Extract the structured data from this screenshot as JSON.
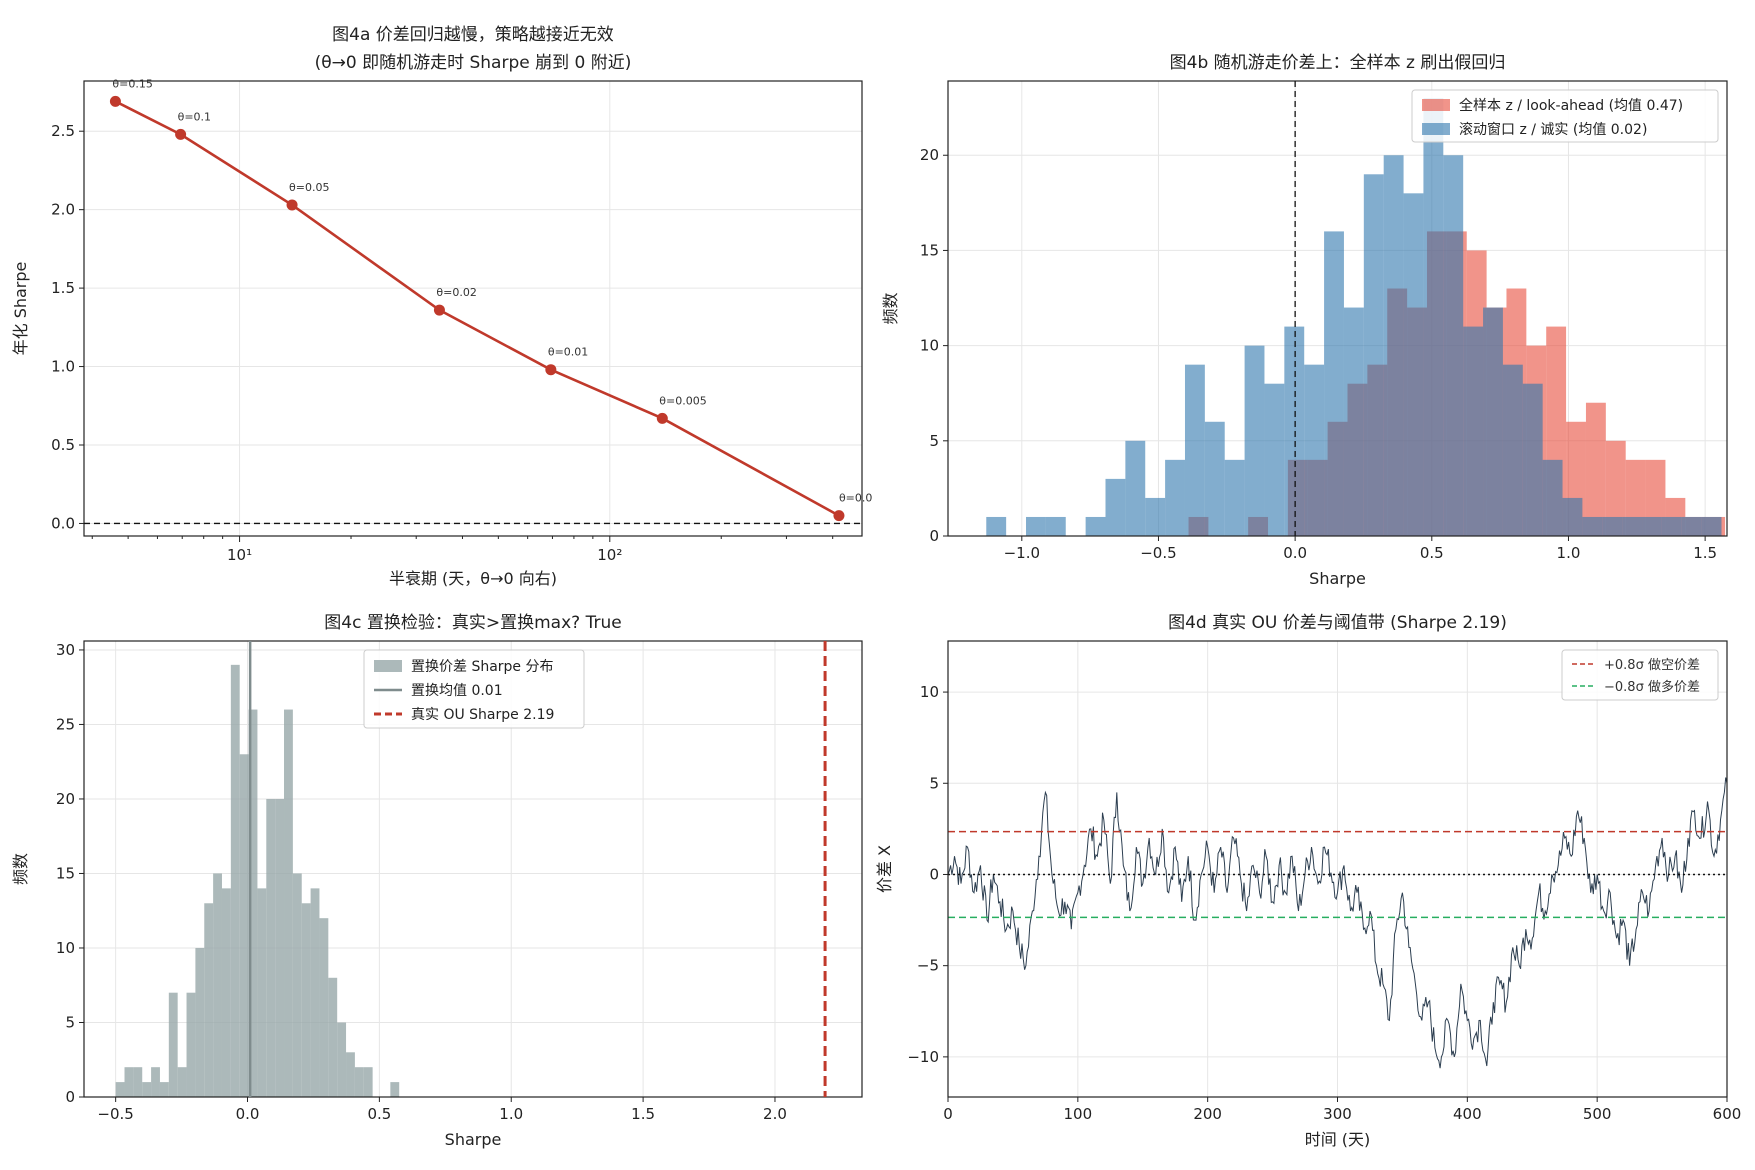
{
  "chart_data": [
    {
      "id": "a",
      "type": "line",
      "title": "图4a  价差回归越慢，策略越接近无效",
      "subtitle": "(θ→0 即随机游走时 Sharpe 崩到 0 附近)",
      "xlabel": "半衰期 (天，θ→0 向右)",
      "ylabel": "年化 Sharpe",
      "xscale": "log",
      "xlim": [
        3.8,
        480
      ],
      "ylim": [
        -0.08,
        2.82
      ],
      "x_ticks": [
        {
          "value": 10,
          "label": "10¹"
        },
        {
          "value": 100,
          "label": "10²"
        }
      ],
      "y_ticks": [
        0.0,
        0.5,
        1.0,
        1.5,
        2.0,
        2.5
      ],
      "y_tick_labels": [
        "0.0",
        "0.5",
        "1.0",
        "1.5",
        "2.0",
        "2.5"
      ],
      "x": [
        4.62,
        6.93,
        13.86,
        34.66,
        69.31,
        138.63,
        415.9
      ],
      "y": [
        2.69,
        2.48,
        2.03,
        1.36,
        0.98,
        0.67,
        0.05
      ],
      "point_labels": [
        "θ=0.15",
        "θ=0.1",
        "θ=0.05",
        "θ=0.02",
        "θ=0.01",
        "θ=0.005",
        "θ=0.0"
      ],
      "hline": 0,
      "grid": true,
      "colors": {
        "line": "#c0392b"
      }
    },
    {
      "id": "b",
      "type": "histogram",
      "title": "图4b  随机游走价差上：全样本 z 刷出假回归",
      "xlabel": "Sharpe",
      "ylabel": "频数",
      "xlim": [
        -1.27,
        1.58
      ],
      "ylim": [
        0,
        23.9
      ],
      "x_ticks": [
        -1.0,
        -0.5,
        0.0,
        0.5,
        1.0,
        1.5
      ],
      "x_tick_labels": [
        "−1.0",
        "−0.5",
        "0.0",
        "0.5",
        "1.0",
        "1.5"
      ],
      "y_ticks": [
        0,
        5,
        10,
        15,
        20
      ],
      "y_tick_labels": [
        "0",
        "5",
        "10",
        "15",
        "20"
      ],
      "vline": 0,
      "grid": true,
      "legend_position": "top-right",
      "series": [
        {
          "name": "全样本 z / look-ahead (均值 0.47)",
          "color": "#e74c3c",
          "bin_start": -0.39,
          "bin_width": 0.0727,
          "counts": [
            1,
            0,
            0,
            1,
            0,
            4,
            4,
            6,
            8,
            9,
            13,
            12,
            16,
            16,
            15,
            12,
            13,
            10,
            11,
            6,
            7,
            5,
            4,
            4,
            2,
            1,
            1,
            0,
            0,
            1,
            2,
            1
          ]
        },
        {
          "name": "滚动窗口 z / 诚实 (均值 0.02)",
          "color": "#2e77ae",
          "bin_start": -1.13,
          "bin_width": 0.0727,
          "counts": [
            1,
            0,
            1,
            1,
            0,
            1,
            3,
            5,
            2,
            4,
            9,
            6,
            4,
            10,
            8,
            11,
            9,
            16,
            12,
            19,
            20,
            18,
            23,
            20,
            11,
            12,
            9,
            8,
            4,
            2,
            1,
            1,
            1,
            1,
            1,
            1,
            1
          ]
        }
      ]
    },
    {
      "id": "c",
      "type": "histogram",
      "title": "图4c  置换检验：真实>置换max? True",
      "xlabel": "Sharpe",
      "ylabel": "频数",
      "xlim": [
        -0.62,
        2.33
      ],
      "ylim": [
        0,
        30.6
      ],
      "x_ticks": [
        -0.5,
        0.0,
        0.5,
        1.0,
        1.5,
        2.0
      ],
      "x_tick_labels": [
        "−0.5",
        "0.0",
        "0.5",
        "1.0",
        "1.5",
        "2.0"
      ],
      "y_ticks": [
        0,
        5,
        10,
        15,
        20,
        25,
        30
      ],
      "y_tick_labels": [
        "0",
        "5",
        "10",
        "15",
        "20",
        "25",
        "30"
      ],
      "grid": true,
      "legend_position": "top-center",
      "legend": [
        "置换价差 Sharpe 分布",
        "置换均值 0.01",
        "真实 OU Sharpe 2.19"
      ],
      "permutation": {
        "bin_start": -0.5,
        "bin_width": 0.0336,
        "counts": [
          1,
          2,
          2,
          1,
          2,
          1,
          7,
          2,
          7,
          10,
          13,
          15,
          14,
          29,
          23,
          26,
          14,
          20,
          20,
          26,
          15,
          13,
          14,
          12,
          8,
          5,
          3,
          2,
          2,
          0,
          0,
          1,
          0,
          0,
          0,
          0
        ]
      },
      "perm_mean": 0.01,
      "real_sharpe": 2.19,
      "colors": {
        "hist": "#95a5a6",
        "mean": "#7f8c8d",
        "real": "#c0392b"
      }
    },
    {
      "id": "d",
      "type": "line",
      "title": "图4d  真实 OU 价差与阈值带 (Sharpe 2.19)",
      "xlabel": "时间 (天)",
      "ylabel": "价差 X",
      "xlim": [
        0,
        600
      ],
      "ylim": [
        -12.2,
        12.8
      ],
      "x_ticks": [
        0,
        100,
        200,
        300,
        400,
        500,
        600
      ],
      "x_tick_labels": [
        "0",
        "100",
        "200",
        "300",
        "400",
        "500",
        "600"
      ],
      "y_ticks": [
        -10,
        -5,
        0,
        5,
        10
      ],
      "y_tick_labels": [
        "−10",
        "−5",
        "0",
        "5",
        "10"
      ],
      "grid": true,
      "legend_position": "top-right",
      "legend": [
        "+0.8σ 做空价差",
        "−0.8σ 做多价差"
      ],
      "thresholds": {
        "upper": 2.35,
        "lower": -2.35
      },
      "series_keypoints": [
        [
          0,
          0
        ],
        [
          5,
          1
        ],
        [
          10,
          -0.5
        ],
        [
          15,
          1.5
        ],
        [
          20,
          -1
        ],
        [
          25,
          0.5
        ],
        [
          30,
          -2.5
        ],
        [
          35,
          0
        ],
        [
          40,
          -1.5
        ],
        [
          45,
          -3
        ],
        [
          50,
          -2
        ],
        [
          55,
          -4
        ],
        [
          60,
          -5
        ],
        [
          65,
          -2
        ],
        [
          70,
          1
        ],
        [
          75,
          4.5
        ],
        [
          80,
          0
        ],
        [
          85,
          -2
        ],
        [
          90,
          -1.5
        ],
        [
          95,
          -3
        ],
        [
          100,
          -1
        ],
        [
          105,
          0.5
        ],
        [
          110,
          2.5
        ],
        [
          115,
          1
        ],
        [
          120,
          3
        ],
        [
          125,
          -0.5
        ],
        [
          130,
          4.5
        ],
        [
          135,
          0.5
        ],
        [
          140,
          -2
        ],
        [
          145,
          1.5
        ],
        [
          150,
          -0.5
        ],
        [
          155,
          2
        ],
        [
          160,
          0
        ],
        [
          165,
          2.5
        ],
        [
          170,
          -1
        ],
        [
          175,
          1.5
        ],
        [
          180,
          -1.5
        ],
        [
          185,
          1
        ],
        [
          190,
          -2.5
        ],
        [
          195,
          0
        ],
        [
          200,
          1.5
        ],
        [
          205,
          -1
        ],
        [
          210,
          1.5
        ],
        [
          215,
          -1
        ],
        [
          220,
          2
        ],
        [
          225,
          0
        ],
        [
          230,
          -2
        ],
        [
          235,
          0.5
        ],
        [
          240,
          -1
        ],
        [
          245,
          1
        ],
        [
          250,
          -1.5
        ],
        [
          255,
          0.5
        ],
        [
          260,
          -1
        ],
        [
          265,
          1
        ],
        [
          270,
          -2
        ],
        [
          275,
          0
        ],
        [
          280,
          1.5
        ],
        [
          285,
          -0.5
        ],
        [
          290,
          1.5
        ],
        [
          300,
          -1
        ],
        [
          305,
          0.5
        ],
        [
          310,
          -2
        ],
        [
          315,
          -1
        ],
        [
          320,
          -3
        ],
        [
          325,
          -2
        ],
        [
          330,
          -5
        ],
        [
          335,
          -6
        ],
        [
          340,
          -8
        ],
        [
          345,
          -3
        ],
        [
          350,
          -1
        ],
        [
          355,
          -4
        ],
        [
          360,
          -6
        ],
        [
          365,
          -8
        ],
        [
          370,
          -7
        ],
        [
          375,
          -9.5
        ],
        [
          380,
          -10
        ],
        [
          385,
          -8
        ],
        [
          390,
          -10
        ],
        [
          395,
          -6
        ],
        [
          400,
          -8
        ],
        [
          405,
          -9
        ],
        [
          410,
          -8
        ],
        [
          415,
          -10.5
        ],
        [
          420,
          -7
        ],
        [
          425,
          -6
        ],
        [
          430,
          -7
        ],
        [
          435,
          -4
        ],
        [
          440,
          -5
        ],
        [
          445,
          -3
        ],
        [
          450,
          -3.5
        ],
        [
          455,
          -1
        ],
        [
          460,
          -2
        ],
        [
          465,
          0
        ],
        [
          470,
          0.5
        ],
        [
          475,
          2
        ],
        [
          480,
          1
        ],
        [
          485,
          3.5
        ],
        [
          490,
          2
        ],
        [
          495,
          -1
        ],
        [
          500,
          0
        ],
        [
          505,
          -2
        ],
        [
          510,
          -1
        ],
        [
          515,
          -3.5
        ],
        [
          520,
          -2.5
        ],
        [
          525,
          -5
        ],
        [
          530,
          -3
        ],
        [
          535,
          -1
        ],
        [
          540,
          -2
        ],
        [
          545,
          0.5
        ],
        [
          550,
          2
        ],
        [
          555,
          0
        ],
        [
          560,
          1
        ],
        [
          565,
          -1
        ],
        [
          570,
          2
        ],
        [
          575,
          3.5
        ],
        [
          580,
          2
        ],
        [
          585,
          4
        ],
        [
          590,
          1
        ],
        [
          595,
          3
        ],
        [
          600,
          5
        ]
      ],
      "colors": {
        "line": "#2c3e50",
        "upper": "#c0392b",
        "lower": "#27ae60"
      }
    }
  ]
}
